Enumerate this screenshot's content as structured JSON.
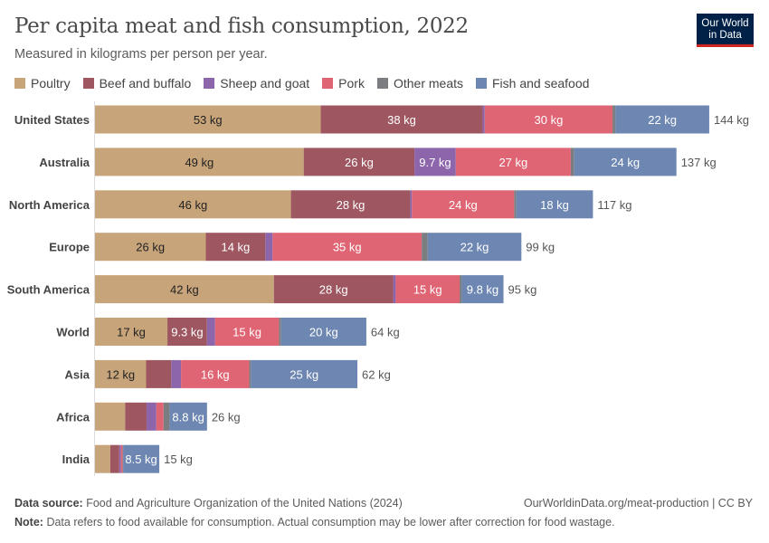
{
  "header": {
    "title": "Per capita meat and fish consumption, 2022",
    "subtitle": "Measured in kilograms per person per year.",
    "logo_text": "Our World in Data"
  },
  "chart_data": {
    "type": "bar",
    "orientation": "horizontal",
    "stacked": true,
    "unit": "kg",
    "legend_position": "top",
    "grid": false,
    "categories": [
      "United States",
      "Australia",
      "North America",
      "Europe",
      "South America",
      "World",
      "Asia",
      "Africa",
      "India"
    ],
    "series": [
      {
        "name": "Poultry",
        "color": "#c8a47a",
        "values": [
          53,
          49,
          46,
          26,
          42,
          17,
          12,
          7.1,
          3.6
        ]
      },
      {
        "name": "Beef and buffalo",
        "color": "#9e5760",
        "values": [
          38,
          26,
          28,
          14,
          28,
          9.3,
          5.9,
          5.0,
          2.1
        ]
      },
      {
        "name": "Sheep and goat",
        "color": "#8c65aa",
        "values": [
          0.5,
          9.7,
          0.4,
          1.7,
          0.6,
          1.9,
          2.3,
          2.3,
          0.4
        ]
      },
      {
        "name": "Pork",
        "color": "#e06574",
        "values": [
          30,
          27,
          24,
          35,
          15,
          15,
          16,
          1.7,
          0.4
        ]
      },
      {
        "name": "Other meats",
        "color": "#7b7d80",
        "values": [
          0.7,
          0.8,
          0.5,
          1.4,
          0.5,
          0.5,
          0.4,
          1.4,
          0.1
        ]
      },
      {
        "name": "Fish and seafood",
        "color": "#6d87b2",
        "values": [
          22,
          24,
          18,
          22,
          9.8,
          20,
          25,
          8.8,
          8.5
        ]
      }
    ],
    "totals": [
      "144 kg",
      "137 kg",
      "117 kg",
      "99 kg",
      "95 kg",
      "64 kg",
      "62 kg",
      "26 kg",
      "15 kg"
    ]
  },
  "footer": {
    "source_label": "Data source:",
    "source": "Food and Agriculture Organization of the United Nations (2024)",
    "url": "OurWorldinData.org/meat-production | CC BY",
    "note_label": "Note:",
    "note": "Data refers to food available for consumption. Actual consumption may be lower after correction for food wastage."
  }
}
